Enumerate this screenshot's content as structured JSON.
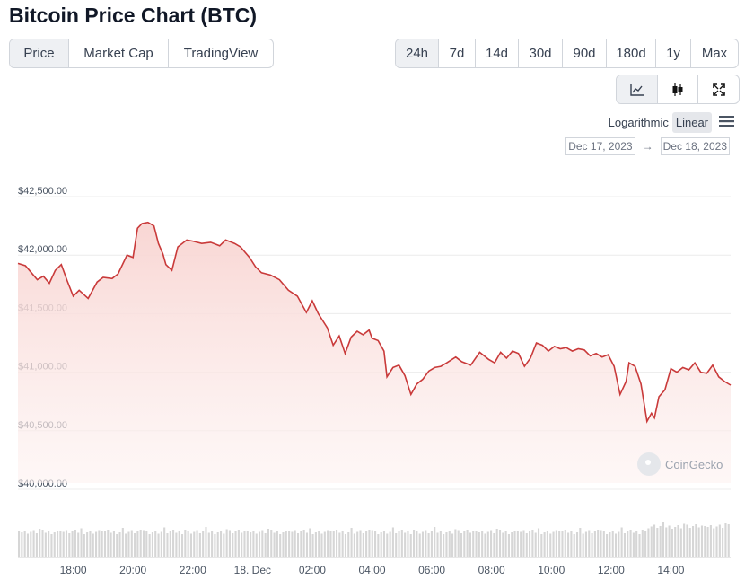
{
  "page": {
    "title": "Bitcoin Price Chart (BTC)"
  },
  "tabs": [
    {
      "label": "Price",
      "active": true
    },
    {
      "label": "Market Cap",
      "active": false
    },
    {
      "label": "TradingView",
      "active": false
    }
  ],
  "ranges": [
    {
      "label": "24h",
      "active": true
    },
    {
      "label": "7d",
      "active": false
    },
    {
      "label": "14d",
      "active": false
    },
    {
      "label": "30d",
      "active": false
    },
    {
      "label": "90d",
      "active": false
    },
    {
      "label": "180d",
      "active": false
    },
    {
      "label": "1y",
      "active": false
    },
    {
      "label": "Max",
      "active": false
    }
  ],
  "tools": [
    {
      "icon": "line-chart-icon",
      "active": true
    },
    {
      "icon": "candlestick-icon",
      "active": false
    },
    {
      "icon": "expand-icon",
      "active": false
    }
  ],
  "scale": {
    "logarithmic": "Logarithmic",
    "linear": "Linear",
    "selected": "linear"
  },
  "date_range": {
    "from": "Dec 17, 2023",
    "arrow": "→",
    "to": "Dec 18, 2023"
  },
  "watermark": "CoinGecko",
  "colors": {
    "line": "#c93a3a",
    "fill": "#fbe3e1",
    "volume": "#d6d6d6"
  },
  "chart_data": {
    "type": "area",
    "ylim": [
      40000,
      42600
    ],
    "xlim": [
      16.15,
      40.0
    ],
    "yticks": [
      {
        "value": 40000,
        "label": "$40,000.00"
      },
      {
        "value": 40500,
        "label": "$40,500.00"
      },
      {
        "value": 41000,
        "label": "$41,000.00"
      },
      {
        "value": 41500,
        "label": "$41,500.00"
      },
      {
        "value": 42000,
        "label": "$42,000.00"
      },
      {
        "value": 42500,
        "label": "$42,500.00"
      }
    ],
    "xticks": [
      {
        "value": 18,
        "label": "18:00"
      },
      {
        "value": 20,
        "label": "20:00"
      },
      {
        "value": 22,
        "label": "22:00"
      },
      {
        "value": 24,
        "label": "18. Dec"
      },
      {
        "value": 26,
        "label": "02:00"
      },
      {
        "value": 28,
        "label": "04:00"
      },
      {
        "value": 30,
        "label": "06:00"
      },
      {
        "value": 32,
        "label": "08:00"
      },
      {
        "value": 34,
        "label": "10:00"
      },
      {
        "value": 36,
        "label": "12:00"
      },
      {
        "value": 38,
        "label": "14:00"
      }
    ],
    "series": [
      {
        "x": [
          16.15,
          16.4,
          16.6,
          16.8,
          17.0,
          17.2,
          17.4,
          17.6,
          17.8,
          18.0,
          18.2,
          18.5,
          18.8,
          19.0,
          19.3,
          19.5,
          19.8,
          20.0,
          20.15,
          20.3,
          20.5,
          20.7,
          20.85,
          21.0,
          21.1,
          21.3,
          21.5,
          21.8,
          22.0,
          22.3,
          22.6,
          22.9,
          23.1,
          23.4,
          23.6,
          23.9,
          24.1,
          24.3,
          24.6,
          24.9,
          25.2,
          25.5,
          25.8,
          26.0,
          26.2,
          26.5,
          26.7,
          26.9,
          27.1,
          27.3,
          27.5,
          27.7,
          27.9,
          28.0,
          28.2,
          28.4,
          28.5,
          28.7,
          28.9,
          29.1,
          29.3,
          29.5,
          29.7,
          29.9,
          30.1,
          30.3,
          30.5,
          30.8,
          31.0,
          31.3,
          31.6,
          31.9,
          32.1,
          32.3,
          32.5,
          32.7,
          32.9,
          33.1,
          33.3,
          33.5,
          33.7,
          33.9,
          34.1,
          34.3,
          34.5,
          34.7,
          34.9,
          35.1,
          35.3,
          35.5,
          35.7,
          35.9,
          36.1,
          36.3,
          36.5,
          36.6,
          36.8,
          37.0,
          37.2,
          37.35,
          37.45,
          37.6,
          37.8,
          38.0,
          38.2,
          38.4,
          38.6,
          38.8,
          39.0,
          39.2,
          39.4,
          39.6,
          39.8,
          40.0
        ],
        "y": [
          41930,
          41910,
          41850,
          41790,
          41820,
          41760,
          41870,
          41920,
          41780,
          41650,
          41700,
          41630,
          41770,
          41810,
          41800,
          41840,
          42000,
          41980,
          42230,
          42270,
          42280,
          42250,
          42100,
          42010,
          41920,
          41870,
          42070,
          42130,
          42120,
          42100,
          42110,
          42080,
          42130,
          42100,
          42070,
          41980,
          41900,
          41850,
          41830,
          41790,
          41700,
          41650,
          41510,
          41610,
          41500,
          41380,
          41230,
          41310,
          41160,
          41300,
          41350,
          41320,
          41360,
          41290,
          41270,
          41180,
          40960,
          41040,
          41060,
          40970,
          40810,
          40900,
          40940,
          41010,
          41040,
          41050,
          41080,
          41130,
          41090,
          41060,
          41170,
          41110,
          41080,
          41170,
          41120,
          41180,
          41160,
          41050,
          41120,
          41250,
          41230,
          41180,
          41220,
          41200,
          41210,
          41180,
          41200,
          41190,
          41140,
          41160,
          41130,
          41150,
          41050,
          40810,
          40920,
          41080,
          41050,
          40900,
          40580,
          40650,
          40610,
          40790,
          40850,
          41030,
          41000,
          41040,
          41020,
          41080,
          41000,
          40990,
          41060,
          40960,
          40920,
          40890
        ]
      }
    ],
    "volume": {
      "note": "relative bars",
      "count": 240
    }
  }
}
